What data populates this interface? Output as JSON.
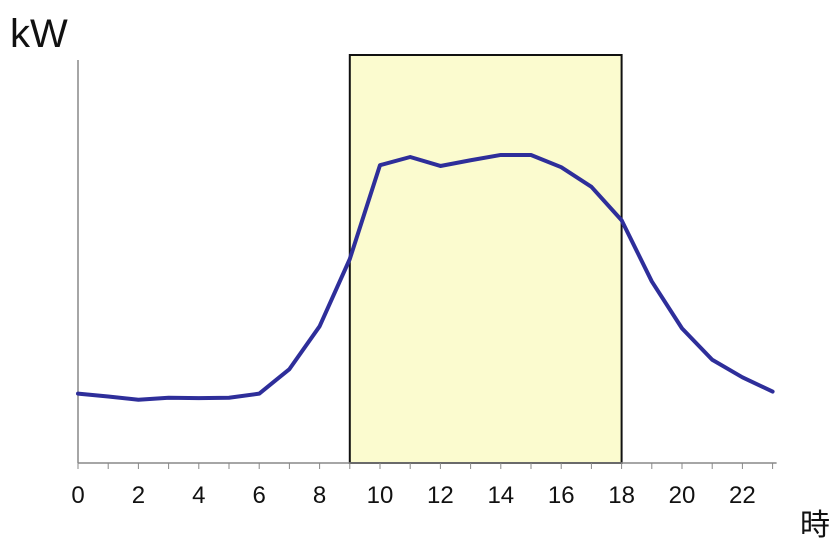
{
  "chart_data": {
    "type": "line",
    "ylabel": "kW",
    "xlabel": "時",
    "x": [
      0,
      1,
      2,
      3,
      4,
      5,
      6,
      7,
      8,
      9,
      10,
      11,
      12,
      13,
      14,
      15,
      16,
      17,
      18,
      19,
      20,
      21,
      22,
      23
    ],
    "series": [
      {
        "values": [
          17.0,
          16.3,
          15.5,
          16.0,
          15.9,
          16.0,
          17.0,
          23.0,
          33.5,
          50.0,
          73.0,
          75.0,
          72.8,
          74.2,
          75.5,
          75.5,
          72.5,
          67.7,
          59.5,
          44.5,
          33.0,
          25.3,
          21.0,
          17.5
        ]
      }
    ],
    "xlim": [
      0,
      23
    ],
    "ylim": [
      0,
      100
    ],
    "xticks": [
      0,
      2,
      4,
      6,
      8,
      10,
      12,
      14,
      16,
      18,
      20,
      22
    ],
    "highlight_range": [
      9,
      18
    ],
    "colors": {
      "line": "#2e2e9a",
      "highlight_fill": "#fbfbcf",
      "highlight_stroke": "#111111",
      "axis": "#888888"
    }
  }
}
